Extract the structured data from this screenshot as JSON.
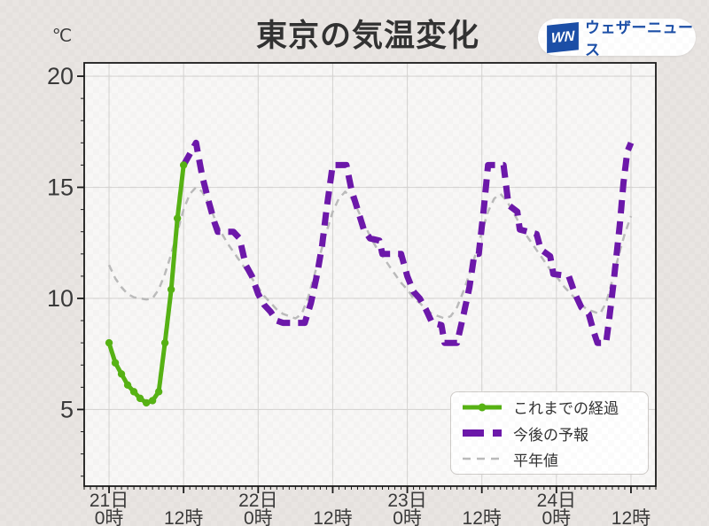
{
  "title": "東京の気温変化",
  "unit_label": "℃",
  "logo": {
    "badge": "WN",
    "text": "ウェザーニュース",
    "blue": "#1c4fa8"
  },
  "legend": {
    "items": [
      {
        "key": "past",
        "label": "これまでの経過"
      },
      {
        "key": "forecast",
        "label": "今後の予報"
      },
      {
        "key": "normal",
        "label": "平年値"
      }
    ]
  },
  "colors": {
    "past": "#57b314",
    "forecast": "#6d18ab",
    "normal": "#bcbcbc",
    "background": "#e9e5e2",
    "plot_background": "#f8f7f6",
    "grid": "#d8d6d4",
    "spine": "#1a1a1a",
    "text": "#3a3a3a"
  },
  "chart_data": {
    "type": "line",
    "title": "東京の気温変化",
    "ylabel": "℃",
    "x_unit": "hours from 21日 0時",
    "xlim": [
      -4,
      88
    ],
    "ylim": [
      1.55,
      20.6
    ],
    "grid": true,
    "legend_position": "lower right",
    "yticks": [
      {
        "v": 5,
        "label": "5"
      },
      {
        "v": 10,
        "label": "10"
      },
      {
        "v": 15,
        "label": "15"
      },
      {
        "v": 20,
        "label": "20"
      }
    ],
    "xticks": [
      {
        "t": 0,
        "day": "21日",
        "hour": "0時"
      },
      {
        "t": 12,
        "day": "",
        "hour": "12時"
      },
      {
        "t": 24,
        "day": "22日",
        "hour": "0時"
      },
      {
        "t": 36,
        "day": "",
        "hour": "12時"
      },
      {
        "t": 48,
        "day": "23日",
        "hour": "0時"
      },
      {
        "t": 60,
        "day": "",
        "hour": "12時"
      },
      {
        "t": 72,
        "day": "24日",
        "hour": "0時"
      },
      {
        "t": 84,
        "day": "",
        "hour": "12時"
      }
    ],
    "series": [
      {
        "key": "normal",
        "name": "平年値",
        "style": "dashed-thin",
        "color": "#bcbcbc",
        "points": [
          [
            0,
            11.5
          ],
          [
            1,
            10.9
          ],
          [
            2,
            10.5
          ],
          [
            3,
            10.2
          ],
          [
            4,
            10.05
          ],
          [
            5,
            10.0
          ],
          [
            6,
            9.95
          ],
          [
            7,
            10.0
          ],
          [
            8,
            10.4
          ],
          [
            9,
            11.1
          ],
          [
            10,
            12.0
          ],
          [
            11,
            13.0
          ],
          [
            12,
            14.0
          ],
          [
            13,
            14.7
          ],
          [
            14,
            15.0
          ],
          [
            15,
            14.8
          ],
          [
            16,
            14.3
          ],
          [
            17,
            13.6
          ],
          [
            18,
            13.0
          ],
          [
            19,
            12.5
          ],
          [
            20,
            12.1
          ],
          [
            21,
            11.7
          ],
          [
            22,
            11.3
          ],
          [
            23,
            10.9
          ],
          [
            24,
            10.5
          ],
          [
            25,
            10.1
          ],
          [
            26,
            9.8
          ],
          [
            27,
            9.5
          ],
          [
            28,
            9.3
          ],
          [
            29,
            9.2
          ],
          [
            30,
            9.1
          ],
          [
            31,
            9.3
          ],
          [
            32,
            10.0
          ],
          [
            33,
            11.0
          ],
          [
            34,
            12.0
          ],
          [
            35,
            13.0
          ],
          [
            36,
            13.9
          ],
          [
            37,
            14.5
          ],
          [
            38,
            14.8
          ],
          [
            39,
            14.5
          ],
          [
            40,
            14.0
          ],
          [
            41,
            13.4
          ],
          [
            42,
            12.8
          ],
          [
            43,
            12.3
          ],
          [
            44,
            11.9
          ],
          [
            45,
            11.5
          ],
          [
            46,
            11.1
          ],
          [
            47,
            10.7
          ],
          [
            48,
            10.4
          ],
          [
            49,
            10.0
          ],
          [
            50,
            9.8
          ],
          [
            51,
            9.5
          ],
          [
            52,
            9.3
          ],
          [
            53,
            9.2
          ],
          [
            54,
            9.1
          ],
          [
            55,
            9.2
          ],
          [
            56,
            9.6
          ],
          [
            57,
            10.3
          ],
          [
            58,
            11.1
          ],
          [
            59,
            12.0
          ],
          [
            60,
            13.0
          ],
          [
            61,
            13.9
          ],
          [
            62,
            14.5
          ],
          [
            63,
            14.7
          ],
          [
            64,
            14.4
          ],
          [
            65,
            13.9
          ],
          [
            66,
            13.4
          ],
          [
            67,
            12.9
          ],
          [
            68,
            12.5
          ],
          [
            69,
            12.1
          ],
          [
            70,
            11.7
          ],
          [
            71,
            11.3
          ],
          [
            72,
            11.0
          ],
          [
            73,
            10.6
          ],
          [
            74,
            10.3
          ],
          [
            75,
            10.0
          ],
          [
            76,
            9.7
          ],
          [
            77,
            9.5
          ],
          [
            78,
            9.4
          ],
          [
            79,
            9.3
          ],
          [
            80,
            9.8
          ],
          [
            81,
            10.8
          ],
          [
            82,
            11.9
          ],
          [
            83,
            12.9
          ],
          [
            84,
            13.7
          ]
        ]
      },
      {
        "key": "forecast",
        "name": "今後の予報",
        "style": "dashed-thick",
        "color": "#6d18ab",
        "points": [
          [
            12,
            16.0
          ],
          [
            13,
            16.5
          ],
          [
            14,
            17.0
          ],
          [
            15,
            15.5
          ],
          [
            16,
            14.4
          ],
          [
            17,
            13.4
          ],
          [
            17.5,
            13.0
          ],
          [
            20,
            13.0
          ],
          [
            21,
            12.7
          ],
          [
            22,
            11.5
          ],
          [
            23,
            11.0
          ],
          [
            24,
            10.2
          ],
          [
            25,
            9.7
          ],
          [
            26,
            9.4
          ],
          [
            27,
            9.0
          ],
          [
            28,
            8.9
          ],
          [
            31.5,
            8.9
          ],
          [
            32.5,
            9.8
          ],
          [
            33.5,
            11.1
          ],
          [
            34.3,
            12.4
          ],
          [
            35,
            14.0
          ],
          [
            36,
            16.0
          ],
          [
            38.2,
            16.0
          ],
          [
            39,
            14.9
          ],
          [
            40,
            14.0
          ],
          [
            41,
            13.1
          ],
          [
            42,
            12.7
          ],
          [
            43.5,
            12.6
          ],
          [
            44,
            12.0
          ],
          [
            47,
            12.0
          ],
          [
            48,
            11.0
          ],
          [
            49,
            10.3
          ],
          [
            50,
            10.0
          ],
          [
            51,
            9.5
          ],
          [
            52,
            8.9
          ],
          [
            53.5,
            8.8
          ],
          [
            54,
            8.0
          ],
          [
            56,
            8.0
          ],
          [
            57,
            9.2
          ],
          [
            58,
            10.5
          ],
          [
            58.8,
            12.0
          ],
          [
            59.5,
            12.0
          ],
          [
            60.3,
            14.0
          ],
          [
            61,
            16.0
          ],
          [
            63.5,
            16.0
          ],
          [
            64.3,
            14.2
          ],
          [
            65.7,
            13.9
          ],
          [
            66.1,
            13.1
          ],
          [
            68.8,
            12.9
          ],
          [
            69.5,
            12.2
          ],
          [
            71,
            11.9
          ],
          [
            71.5,
            11.1
          ],
          [
            74,
            11.0
          ],
          [
            75,
            10.2
          ],
          [
            76,
            9.6
          ],
          [
            77.2,
            9.3
          ],
          [
            78,
            8.5
          ],
          [
            78.6,
            8.0
          ],
          [
            80,
            8.0
          ],
          [
            80.6,
            9.3
          ],
          [
            81.2,
            10.7
          ],
          [
            81.7,
            12.0
          ],
          [
            82.2,
            13.3
          ],
          [
            82.8,
            15.2
          ],
          [
            83.4,
            16.6
          ],
          [
            84,
            17.0
          ]
        ]
      },
      {
        "key": "past",
        "name": "これまでの経過",
        "style": "solid-marker",
        "color": "#57b314",
        "points": [
          [
            0,
            8.0
          ],
          [
            1,
            7.1
          ],
          [
            2,
            6.6
          ],
          [
            3,
            6.1
          ],
          [
            4,
            5.8
          ],
          [
            5,
            5.5
          ],
          [
            6,
            5.3
          ],
          [
            7,
            5.4
          ],
          [
            8,
            5.8
          ],
          [
            9,
            8.0
          ],
          [
            10,
            10.4
          ],
          [
            11,
            13.6
          ],
          [
            12,
            16.0
          ]
        ]
      }
    ]
  }
}
